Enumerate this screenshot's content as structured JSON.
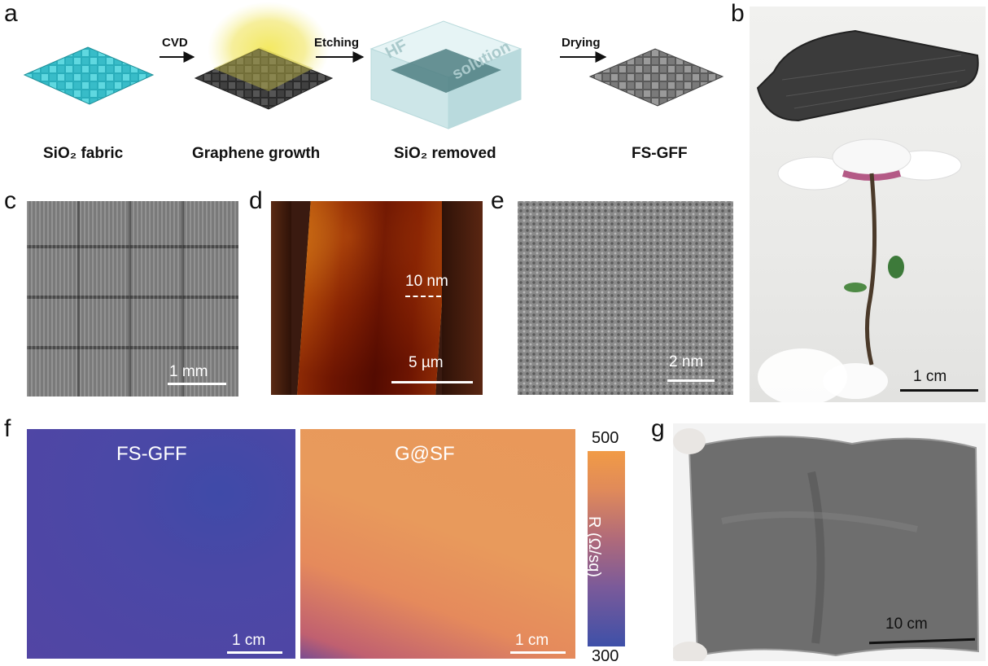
{
  "panel_labels": {
    "a": "a",
    "b": "b",
    "c": "c",
    "d": "d",
    "e": "e",
    "f": "f",
    "g": "g"
  },
  "schematic": {
    "steps": [
      "CVD",
      "Etching",
      "Drying"
    ],
    "captions": [
      "SiO₂ fabric",
      "Graphene growth",
      "SiO₂ removed",
      "FS-GFF"
    ],
    "tank_text": {
      "hf": "HF",
      "solution": "solution"
    }
  },
  "scalebars": {
    "b": "1 cm",
    "c": "1 mm",
    "d_profile": "10 nm",
    "d": "5 µm",
    "e": "2 nm",
    "f_left": "1 cm",
    "f_right": "1 cm",
    "g": "10 cm"
  },
  "maps": {
    "left_name": "FS-GFF",
    "right_name": "G@SF"
  },
  "colorbar": {
    "max": "500",
    "min": "300",
    "label": "R (Ω/sq)"
  },
  "colors": {
    "fabric_cyan": "#3fc4cf",
    "graphene_dark": "#3a3a3a",
    "tank": "#cfe8ea",
    "map_low": "#4b4aa6",
    "map_high": "#e99a5a",
    "afm_dark": "#4a1a0c",
    "afm_bright": "#e9b44e"
  }
}
